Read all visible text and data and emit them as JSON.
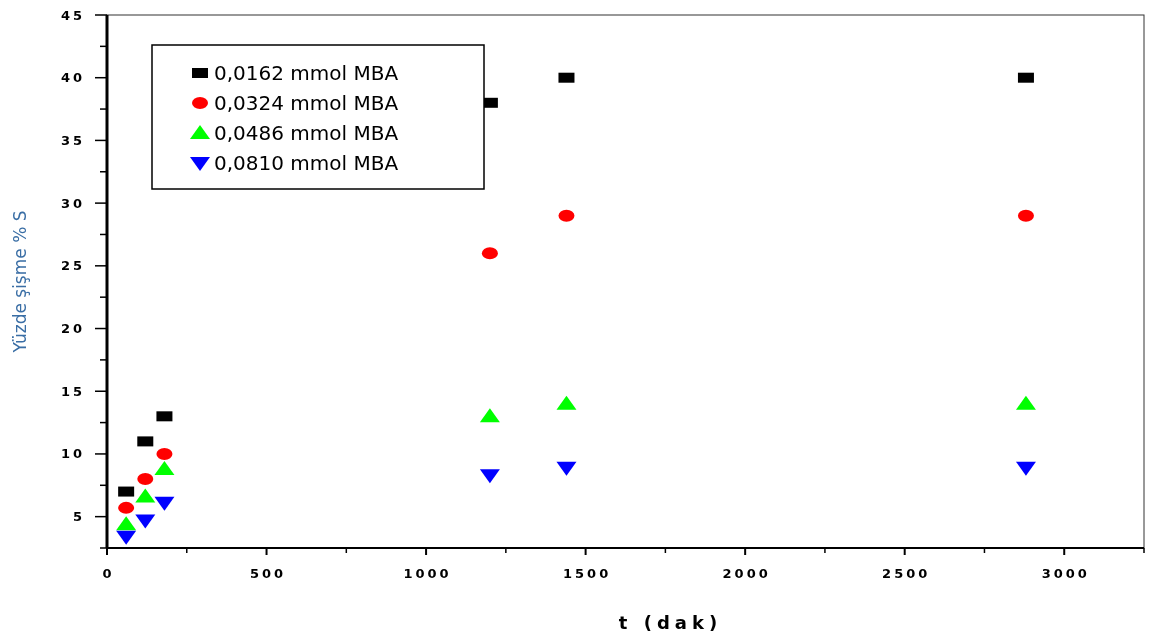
{
  "chart_data": {
    "type": "scatter",
    "xlabel": "t (dak)",
    "ylabel": "Yüzde şişme % S",
    "x": [
      60,
      120,
      180,
      1200,
      1440,
      2880
    ],
    "xlim": [
      0,
      3250
    ],
    "xticks": [
      0,
      500,
      1000,
      1500,
      2000,
      2500,
      3000
    ],
    "ylim": [
      2.5,
      45
    ],
    "yticks": [
      5,
      10,
      15,
      20,
      25,
      30,
      35,
      40,
      45
    ],
    "legend": "top left",
    "grid": false,
    "series": [
      {
        "name": "0,0162 mmol MBA",
        "color": "#000000",
        "marker": "square",
        "values": [
          7,
          11,
          13,
          38,
          40,
          40
        ]
      },
      {
        "name": "0,0324 mmol MBA",
        "color": "#ff0000",
        "marker": "circle",
        "values": [
          5.7,
          8,
          10,
          26,
          29,
          29
        ]
      },
      {
        "name": "0,0486 mmol MBA",
        "color": "#00ff00",
        "marker": "triangle",
        "values": [
          4.4,
          6.6,
          8.8,
          13,
          14,
          14
        ]
      },
      {
        "name": "0,0810 mmol MBA",
        "color": "#0000ff",
        "marker": "triangle-down",
        "values": [
          3.4,
          4.7,
          6.1,
          8.3,
          8.9,
          8.9
        ]
      }
    ]
  }
}
